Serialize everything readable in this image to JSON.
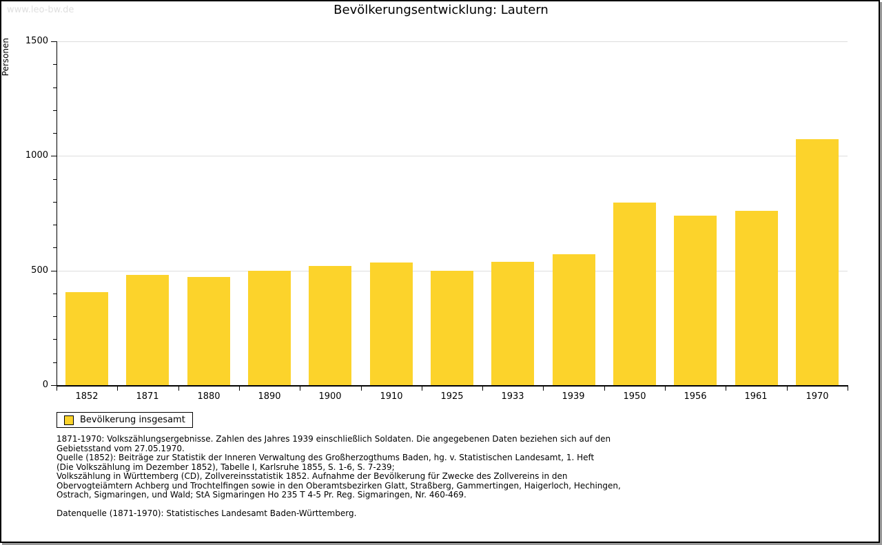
{
  "watermark": "www.leo-bw.de",
  "colors": {
    "bar": "#FCD32B",
    "grid": "#DDDDDD",
    "axis": "#000000",
    "watermark": "#DFDFDF",
    "frame_shadow": "#999999"
  },
  "chart_data": {
    "type": "bar",
    "title": "Bevölkerungsentwicklung: Lautern",
    "xlabel": "",
    "ylabel": "Personen",
    "categories": [
      "1852",
      "1871",
      "1880",
      "1890",
      "1900",
      "1910",
      "1925",
      "1933",
      "1939",
      "1950",
      "1956",
      "1961",
      "1970"
    ],
    "values": [
      405,
      480,
      472,
      500,
      520,
      535,
      500,
      538,
      570,
      798,
      740,
      760,
      1072
    ],
    "ylim": [
      0,
      1500
    ],
    "yticks_major": [
      0,
      500,
      1000,
      1500
    ],
    "ytick_minor_step": 100,
    "ytick_major_step": 500,
    "grid": "horizontal-major",
    "legend_position": "bottom-left"
  },
  "legend": {
    "label": "Bevölkerung insgesamt"
  },
  "footnotes": {
    "lines": [
      "1871-1970: Volkszählungsergebnisse. Zahlen des Jahres 1939 einschließlich Soldaten. Die angegebenen Daten beziehen sich auf den",
      "Gebietsstand vom 27.05.1970.",
      "Quelle (1852): Beiträge zur Statistik der Inneren Verwaltung des Großherzogthums Baden, hg. v. Statistischen Landesamt, 1. Heft",
      "(Die Volkszählung im Dezember 1852), Tabelle I, Karlsruhe 1855, S. 1-6, S. 7-239;",
      "Volkszählung in Württemberg (CD), Zollvereinsstatistik 1852. Aufnahme der Bevölkerung für Zwecke des Zollvereins in den",
      "Obervogteiämtern Achberg und Trochtelfingen sowie in den Oberamtsbezirken Glatt, Straßberg, Gammertingen, Haigerloch, Hechingen,",
      "Ostrach, Sigmaringen, und Wald; StA Sigmaringen Ho 235 T 4-5 Pr. Reg. Sigmaringen, Nr. 460-469."
    ],
    "datasource": "Datenquelle (1871-1970): Statistisches Landesamt Baden-Württemberg."
  }
}
